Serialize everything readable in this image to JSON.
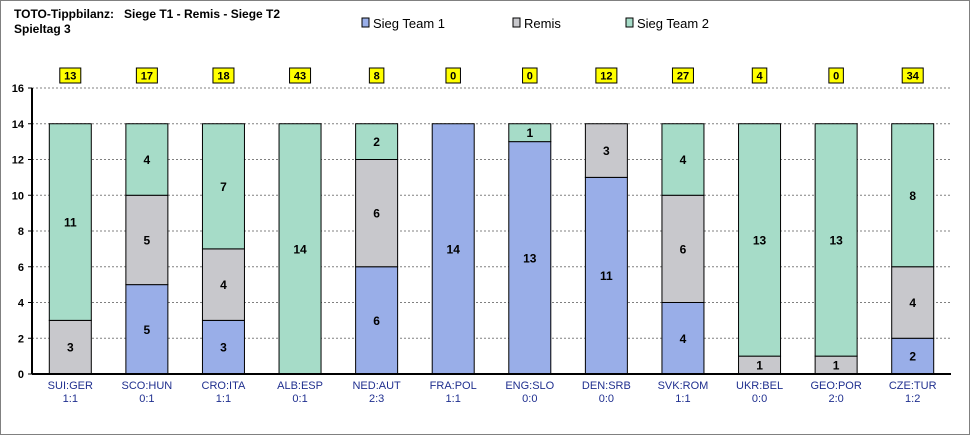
{
  "chart_data": {
    "type": "bar",
    "stacked": true,
    "title_line1": "TOTO-Tippbilanz:   Siege T1 - Remis - Siege T2",
    "title_line2": "Spieltag 3",
    "categories": [
      "SUI:GER",
      "SCO:HUN",
      "CRO:ITA",
      "ALB:ESP",
      "NED:AUT",
      "FRA:POL",
      "ENG:SLO",
      "DEN:SRB",
      "SVK:ROM",
      "UKR:BEL",
      "GEO:POR",
      "CZE:TUR"
    ],
    "results": [
      "1:1",
      "0:1",
      "1:1",
      "0:1",
      "2:3",
      "1:1",
      "0:0",
      "0:0",
      "1:1",
      "0:0",
      "2:0",
      "1:2"
    ],
    "top_labels": [
      "13",
      "17",
      "18",
      "43",
      "8",
      "0",
      "0",
      "12",
      "27",
      "4",
      "0",
      "34"
    ],
    "series": [
      {
        "name": "Sieg Team 1",
        "color": "#99aee8",
        "values": [
          0,
          5,
          3,
          0,
          6,
          14,
          13,
          11,
          4,
          0,
          0,
          2
        ]
      },
      {
        "name": "Remis",
        "color": "#c8c8cc",
        "values": [
          3,
          5,
          4,
          0,
          6,
          0,
          0,
          3,
          6,
          1,
          1,
          4
        ]
      },
      {
        "name": "Sieg Team 2",
        "color": "#a6dcc8",
        "values": [
          11,
          4,
          7,
          14,
          2,
          0,
          1,
          0,
          4,
          13,
          13,
          8
        ]
      }
    ],
    "ylim": [
      0,
      16
    ],
    "yticks": [
      "0",
      "2",
      "4",
      "6",
      "8",
      "10",
      "12",
      "14",
      "16"
    ],
    "grid": true,
    "legend_position": "top"
  }
}
